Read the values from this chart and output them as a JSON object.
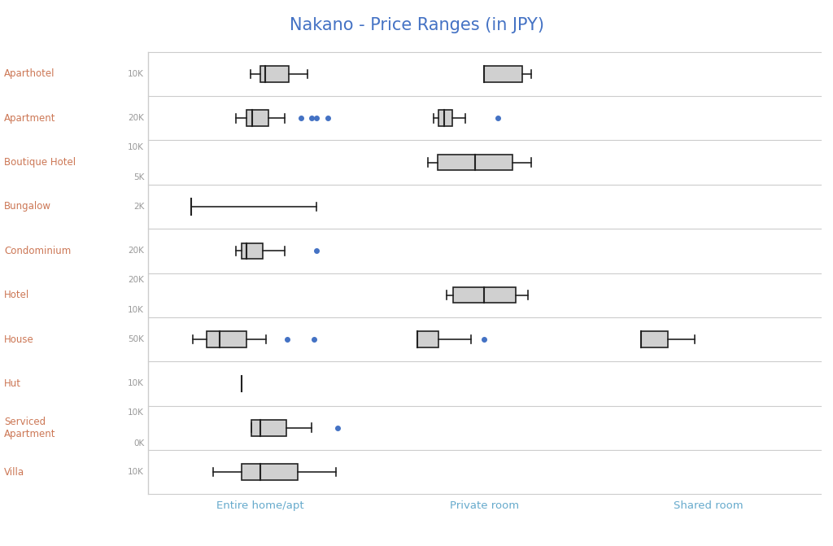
{
  "title": "Nakano - Price Ranges (in JPY)",
  "title_color": "#4472c4",
  "property_types": [
    "Aparthotel",
    "Apartment",
    "Boutique Hotel",
    "Bungalow",
    "Condominium",
    "Hotel",
    "House",
    "Hut",
    "Serviced\nApartment",
    "Villa"
  ],
  "room_types": [
    "Entire home/apt",
    "Private room",
    "Shared room"
  ],
  "label_color_property": "#cc7755",
  "label_color_room": "#66aacc",
  "axis_tick_color": "#999999",
  "box_facecolor": "#d0d0d0",
  "box_edgecolor": "#222222",
  "median_color": "#222222",
  "flier_color": "#4472c4",
  "grid_color": "#cccccc",
  "background_color": "#ffffff",
  "tick_labels": {
    "Aparthotel": [
      "10K"
    ],
    "Apartment": [
      "20K"
    ],
    "Boutique Hotel": [
      "10K",
      "5K"
    ],
    "Bungalow": [
      "2K"
    ],
    "Condominium": [
      "20K"
    ],
    "Hotel": [
      "20K",
      "10K"
    ],
    "House": [
      "50K"
    ],
    "Hut": [
      "10K"
    ],
    "Serviced\nApartment": [
      "10K",
      "0K"
    ],
    "Villa": [
      "10K"
    ]
  },
  "row_scales": {
    "Aparthotel": [
      0,
      20000
    ],
    "Apartment": [
      0,
      35000
    ],
    "Boutique Hotel": [
      0,
      20000
    ],
    "Bungalow": [
      0,
      15000
    ],
    "Condominium": [
      0,
      35000
    ],
    "Hotel": [
      0,
      30000
    ],
    "House": [
      20000,
      90000
    ],
    "Hut": [
      0,
      20000
    ],
    "Serviced\nApartment": [
      -2000,
      20000
    ],
    "Villa": [
      0,
      20000
    ]
  },
  "boxes": {
    "Aparthotel": {
      "Entire home/apt": {
        "min": 9000,
        "q1": 10000,
        "median": 10500,
        "q3": 13000,
        "max": 15000,
        "outliers": []
      },
      "Private room": {
        "min": 10000,
        "q1": 10000,
        "median": 10000,
        "q3": 14000,
        "max": 15000,
        "outliers": []
      },
      "Shared room": null
    },
    "Apartment": {
      "Entire home/apt": {
        "min": 13000,
        "q1": 15000,
        "median": 16000,
        "q3": 19000,
        "max": 22000,
        "outliers": [
          25000,
          27000,
          28000,
          30000
        ]
      },
      "Private room": {
        "min": 8000,
        "q1": 9000,
        "median": 10000,
        "q3": 11500,
        "max": 14000,
        "outliers": [
          20000
        ]
      },
      "Shared room": null
    },
    "Boutique Hotel": {
      "Entire home/apt": null,
      "Private room": {
        "min": 4000,
        "q1": 5000,
        "median": 9000,
        "q3": 13000,
        "max": 15000,
        "outliers": []
      },
      "Shared room": null
    },
    "Bungalow": {
      "Entire home/apt": {
        "min": 2000,
        "q1": 2000,
        "median": 2000,
        "q3": 2000,
        "max": 12000,
        "outliers": []
      },
      "Private room": null,
      "Shared room": null
    },
    "Condominium": {
      "Entire home/apt": {
        "min": 13000,
        "q1": 14000,
        "median": 15000,
        "q3": 18000,
        "max": 22000,
        "outliers": [
          28000
        ]
      },
      "Private room": null,
      "Shared room": null
    },
    "Hotel": {
      "Entire home/apt": null,
      "Private room": {
        "min": 9000,
        "q1": 10000,
        "median": 15000,
        "q3": 20000,
        "max": 22000,
        "outliers": []
      },
      "Shared room": null
    },
    "House": {
      "Entire home/apt": {
        "min": 30000,
        "q1": 35000,
        "median": 40000,
        "q3": 50000,
        "max": 57000,
        "outliers": [
          65000,
          75000
        ]
      },
      "Private room": {
        "min": 30000,
        "q1": 30000,
        "median": 30000,
        "q3": 38000,
        "max": 50000,
        "outliers": [
          55000
        ]
      },
      "Shared room": {
        "min": 30000,
        "q1": 30000,
        "median": 30000,
        "q3": 40000,
        "max": 50000,
        "outliers": []
      }
    },
    "Hut": {
      "Entire home/apt": {
        "min": 8000,
        "q1": 8000,
        "median": 8000,
        "q3": 8000,
        "max": 8000,
        "outliers": []
      },
      "Private room": null,
      "Shared room": null
    },
    "Serviced\nApartment": {
      "Entire home/apt": {
        "min": 8000,
        "q1": 8000,
        "median": 9000,
        "q3": 12000,
        "max": 15000,
        "outliers": [
          18000
        ]
      },
      "Private room": null,
      "Shared room": null
    },
    "Villa": {
      "Entire home/apt": {
        "min": 5000,
        "q1": 8000,
        "median": 10000,
        "q3": 14000,
        "max": 18000,
        "outliers": []
      },
      "Private room": null,
      "Shared room": null
    }
  },
  "figsize": [
    10.24,
    6.71
  ]
}
